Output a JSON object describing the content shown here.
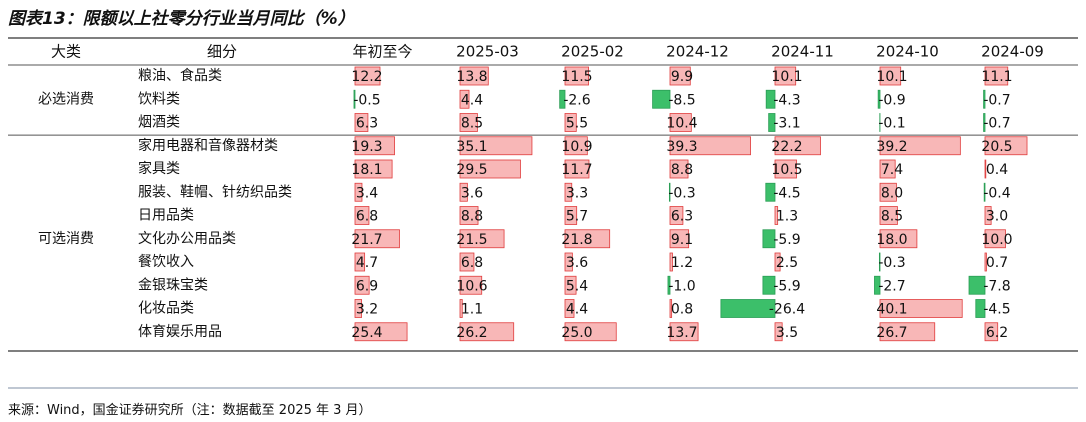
{
  "title": "图表13：限额以上社零分行业当月同比（%）",
  "source": "来源：Wind，国金证券研究所（注：数据截至 2025 年 3 月）",
  "colors": {
    "positive": "#f8b7b7",
    "positive_edge": "#e03c3c",
    "negative": "#3cbf6a",
    "negative_light": "#d3f0db",
    "rule": "#7f8fa6"
  },
  "chart_data": {
    "type": "table",
    "headers": [
      "大类",
      "细分",
      "年初至今",
      "2025-03",
      "2025-02",
      "2024-12",
      "2024-11",
      "2024-10",
      "2024-09"
    ],
    "groups": [
      {
        "name": "必选消费",
        "rows": [
          {
            "name": "粮油、食品类",
            "values": [
              12.2,
              13.8,
              11.5,
              9.9,
              10.1,
              10.1,
              11.1
            ]
          },
          {
            "name": "饮料类",
            "values": [
              -0.5,
              4.4,
              -2.6,
              -8.5,
              -4.3,
              -0.9,
              -0.7
            ]
          },
          {
            "name": "烟酒类",
            "values": [
              6.3,
              8.5,
              5.5,
              10.4,
              -3.1,
              -0.1,
              -0.7
            ]
          }
        ]
      },
      {
        "name": "可选消费",
        "rows": [
          {
            "name": "家用电器和音像器材类",
            "values": [
              19.3,
              35.1,
              10.9,
              39.3,
              22.2,
              39.2,
              20.5
            ]
          },
          {
            "name": "家具类",
            "values": [
              18.1,
              29.5,
              11.7,
              8.8,
              10.5,
              7.4,
              0.4
            ]
          },
          {
            "name": "服装、鞋帽、针纺织品类",
            "values": [
              3.4,
              3.6,
              3.3,
              -0.3,
              -4.5,
              8.0,
              -0.4
            ]
          },
          {
            "name": "日用品类",
            "values": [
              6.8,
              8.8,
              5.7,
              6.3,
              1.3,
              8.5,
              3.0
            ]
          },
          {
            "name": "文化办公用品类",
            "values": [
              21.7,
              21.5,
              21.8,
              9.1,
              -5.9,
              18.0,
              10.0
            ]
          },
          {
            "name": "餐饮收入",
            "values": [
              4.7,
              6.8,
              3.6,
              1.2,
              2.5,
              -0.3,
              0.7
            ]
          },
          {
            "name": "金银珠宝类",
            "values": [
              6.9,
              10.6,
              5.4,
              -1.0,
              -5.9,
              -2.7,
              -7.8
            ]
          },
          {
            "name": "化妆品类",
            "values": [
              3.2,
              1.1,
              4.4,
              0.8,
              -26.4,
              40.1,
              -4.5
            ]
          },
          {
            "name": "体育娱乐用品",
            "values": [
              25.4,
              26.2,
              25.0,
              13.7,
              3.5,
              26.7,
              6.2
            ]
          }
        ]
      }
    ]
  }
}
